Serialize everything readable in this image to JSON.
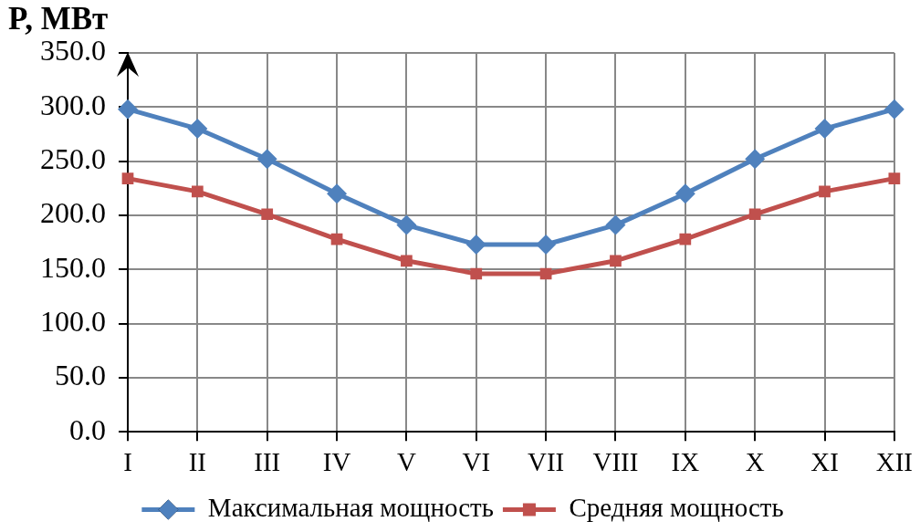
{
  "chart_data": {
    "type": "line",
    "ylabel": "P, МВт",
    "categories": [
      "I",
      "II",
      "III",
      "IV",
      "V",
      "VI",
      "VII",
      "VIII",
      "IX",
      "X",
      "XI",
      "XII"
    ],
    "series": [
      {
        "name": "Максимальная мощность",
        "color": "#4f81bd",
        "marker": "diamond",
        "values": [
          298,
          280,
          252,
          220,
          191,
          173,
          173,
          191,
          220,
          252,
          280,
          298
        ]
      },
      {
        "name": "Средняя мощность",
        "color": "#c0504d",
        "marker": "square",
        "values": [
          234,
          222,
          201,
          178,
          158,
          146,
          146,
          158,
          178,
          201,
          222,
          234
        ]
      }
    ],
    "ylim": [
      0,
      350
    ],
    "yticks": [
      {
        "value": 0,
        "label": "0.0"
      },
      {
        "value": 50,
        "label": "50.0"
      },
      {
        "value": 100,
        "label": "100.0"
      },
      {
        "value": 150,
        "label": "150.0"
      },
      {
        "value": 200,
        "label": "200.0"
      },
      {
        "value": 250,
        "label": "250.0"
      },
      {
        "value": 300,
        "label": "300.0"
      },
      {
        "value": 350,
        "label": "350.0"
      }
    ],
    "grid": true,
    "legend": "bottom"
  }
}
